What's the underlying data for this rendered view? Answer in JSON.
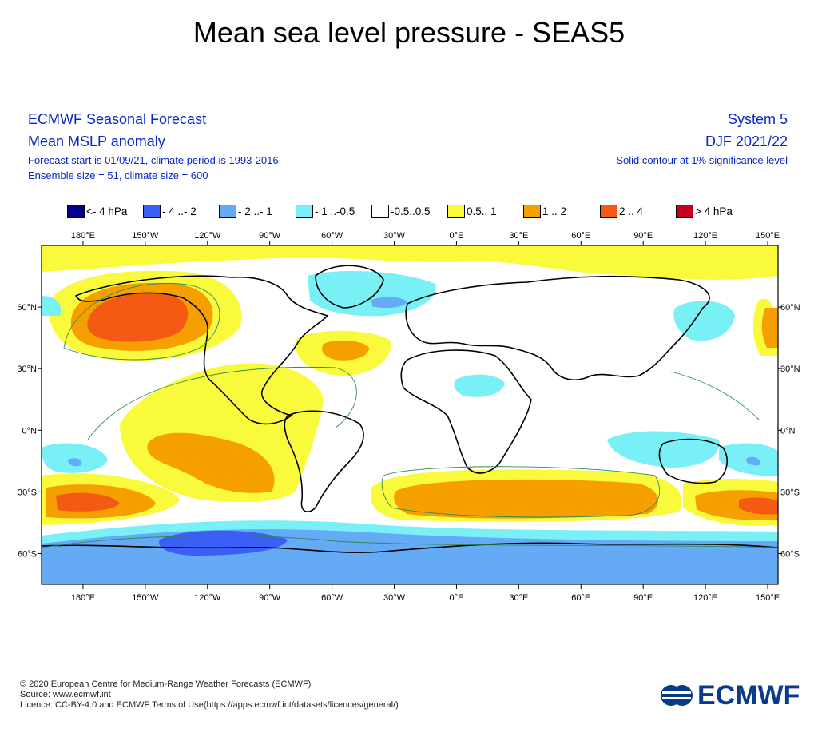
{
  "title": "Mean sea level pressure - SEAS5",
  "header_left": {
    "line1": "ECMWF Seasonal Forecast",
    "line2": "Mean MSLP anomaly",
    "line3": "Forecast start is 01/09/21, climate period is 1993-2016",
    "line4": "Ensemble size = 51, climate size = 600"
  },
  "header_right": {
    "line1": "System 5",
    "line2": "DJF 2021/22",
    "line3": "Solid contour at 1% significance level"
  },
  "legend": [
    {
      "label": "<- 4 hPa",
      "color": "#00008c"
    },
    {
      "label": "- 4 ..- 2",
      "color": "#3b5ff5"
    },
    {
      "label": "- 2 ..- 1",
      "color": "#64aaf5"
    },
    {
      "label": "- 1 ..-0.5",
      "color": "#78f0f5"
    },
    {
      "label": "-0.5..0.5",
      "color": "#ffffff"
    },
    {
      "label": "0.5.. 1",
      "color": "#fafa3c"
    },
    {
      "label": "1 .. 2",
      "color": "#f5a000"
    },
    {
      "label": "2 .. 4",
      "color": "#f55a14"
    },
    {
      "label": "> 4 hPa",
      "color": "#c8001e"
    }
  ],
  "map": {
    "lon_labels": [
      "180°E",
      "150°W",
      "120°W",
      "90°W",
      "60°W",
      "30°W",
      "0°E",
      "30°E",
      "60°E",
      "90°E",
      "120°E",
      "150°E"
    ],
    "lat_labels": [
      "60°N",
      "30°N",
      "0°N",
      "30°S",
      "60°S"
    ],
    "lon_extent": [
      -200,
      155
    ],
    "lat_extent": [
      -75,
      90
    ]
  },
  "footer": {
    "line1": "© 2020 European Centre for Medium-Range Weather Forecasts (ECMWF)",
    "line2": "Source: www.ecmwf.int",
    "line3": "Licence: CC-BY-4.0 and ECMWF Terms of Use(https://apps.ecmwf.int/datasets/licences/general/)",
    "logo_text": "ECMWF"
  }
}
